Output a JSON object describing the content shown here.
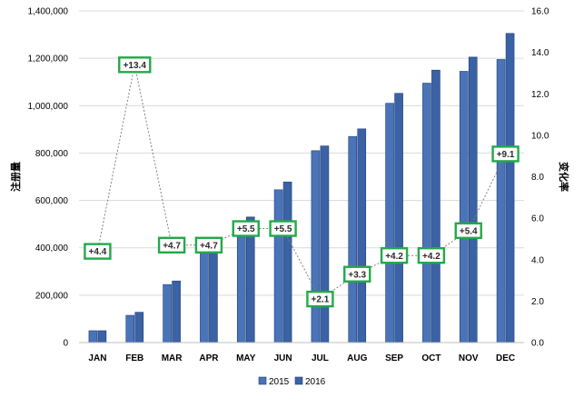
{
  "chart_data": {
    "type": "bar",
    "categories": [
      "JAN",
      "FEB",
      "MAR",
      "APR",
      "MAY",
      "JUN",
      "JUL",
      "AUG",
      "SEP",
      "OCT",
      "NOV",
      "DEC"
    ],
    "series": [
      {
        "name": "2015",
        "type": "bar",
        "axis": "left",
        "color": "#4a74b7",
        "values": [
          50000,
          115000,
          245000,
          395000,
          500000,
          645000,
          810000,
          870000,
          1010000,
          1095000,
          1145000,
          1195000
        ]
      },
      {
        "name": "2016",
        "type": "bar",
        "axis": "left",
        "color": "#3a62a5",
        "values": [
          50000,
          128000,
          260000,
          410000,
          530000,
          678000,
          830000,
          902000,
          1052000,
          1150000,
          1205000,
          1305000
        ]
      },
      {
        "type": "line",
        "axis": "right",
        "line_style": "dotted",
        "label_border_color": "#22a94a",
        "values": [
          4.4,
          13.4,
          4.7,
          4.7,
          5.5,
          5.5,
          2.1,
          3.3,
          4.2,
          4.2,
          5.4,
          9.1
        ],
        "labels": [
          "+4.4",
          "+13.4",
          "+4.7",
          "+4.7",
          "+5.5",
          "+5.5",
          "+2.1",
          "+3.3",
          "+4.2",
          "+4.2",
          "+5.4",
          "+9.1"
        ]
      }
    ],
    "left_axis": {
      "label": "注册量",
      "range": [
        0,
        1400000
      ],
      "ticks": [
        "0",
        "200,000",
        "400,000",
        "600,000",
        "800,000",
        "1,000,000",
        "1,200,000",
        "1,400,000"
      ]
    },
    "right_axis": {
      "label": "变化率",
      "range": [
        0,
        16
      ],
      "ticks": [
        "0.0",
        "2.0",
        "4.0",
        "6.0",
        "8.0",
        "10.0",
        "12.0",
        "14.0",
        "16.0"
      ]
    },
    "grid": true,
    "legend": {
      "position": "bottom-center",
      "items": [
        "2015",
        "2016"
      ]
    }
  }
}
